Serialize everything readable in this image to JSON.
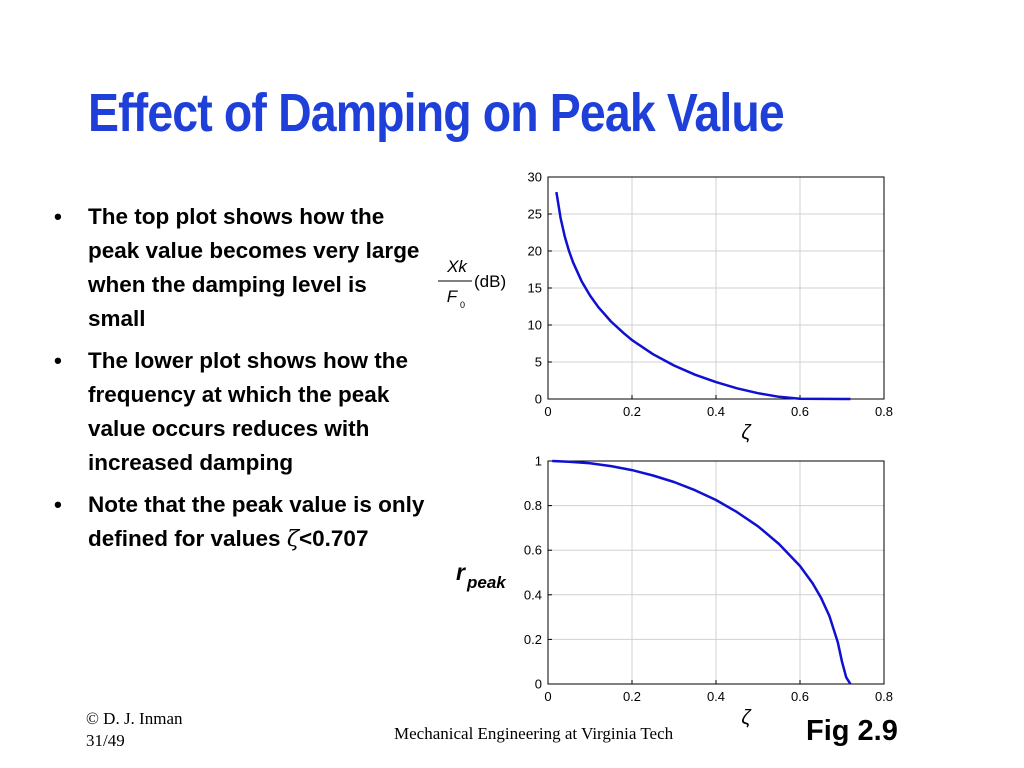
{
  "slide": {
    "title": "Effect of Damping on Peak Value",
    "bullets": [
      {
        "marker": "•",
        "text": "The top plot shows how the peak value becomes very large when the damping level is small"
      },
      {
        "marker": "•",
        "text": "The lower plot shows how the frequency at which the peak value occurs reduces with increased damping"
      },
      {
        "marker": "•",
        "text_before": "Note that the peak value is only defined for values ",
        "symbol": "ζ",
        "text_after": "<0.707"
      }
    ],
    "footer": {
      "copyright": "© D. J. Inman",
      "page": "31/49",
      "center": "Mechanical Engineering at Virginia Tech",
      "figure": "Fig 2.9"
    },
    "colors": {
      "title": "#1f3fd9",
      "curve": "#1010d0",
      "grid": "#d0d0d0"
    }
  },
  "chart_data": [
    {
      "type": "line",
      "xlabel": "ζ",
      "ylabel_numerator": "Xk",
      "ylabel_denominator": "F",
      "ylabel_subscript": "0",
      "ylabel_unit": "(dB)",
      "xlim": [
        0,
        0.8
      ],
      "ylim": [
        0,
        30
      ],
      "xticks": [
        0,
        0.2,
        0.4,
        0.6,
        0.8
      ],
      "xtick_labels": [
        "0",
        "0.2",
        "0.4",
        "0.6",
        "0.8"
      ],
      "yticks": [
        0,
        5,
        10,
        15,
        20,
        25,
        30
      ],
      "ytick_labels": [
        "0",
        "5",
        "10",
        "15",
        "20",
        "25",
        "30"
      ],
      "grid": true,
      "series": [
        {
          "x": [
            0.02,
            0.03,
            0.04,
            0.05,
            0.06,
            0.08,
            0.1,
            0.12,
            0.15,
            0.18,
            0.2,
            0.25,
            0.3,
            0.35,
            0.4,
            0.45,
            0.5,
            0.55,
            0.6,
            0.65,
            0.707,
            0.72
          ],
          "y": [
            27.96,
            24.44,
            21.94,
            20.0,
            18.42,
            15.92,
            13.98,
            12.4,
            10.47,
            8.9,
            7.96,
            6.06,
            4.53,
            3.29,
            2.28,
            1.45,
            0.78,
            0.3,
            0.04,
            0.02,
            0.0,
            0.0
          ]
        }
      ]
    },
    {
      "type": "line",
      "xlabel": "ζ",
      "ylabel_main": "r",
      "ylabel_subscript": "peak",
      "xlim": [
        0,
        0.8
      ],
      "ylim": [
        0,
        1
      ],
      "xticks": [
        0,
        0.2,
        0.4,
        0.6,
        0.8
      ],
      "xtick_labels": [
        "0",
        "0.2",
        "0.4",
        "0.6",
        "0.8"
      ],
      "yticks": [
        0,
        0.2,
        0.4,
        0.6,
        0.8,
        1
      ],
      "ytick_labels": [
        "0",
        "0.2",
        "0.4",
        "0.6",
        "0.8",
        "1"
      ],
      "grid": true,
      "series": [
        {
          "x": [
            0.01,
            0.05,
            0.1,
            0.15,
            0.2,
            0.25,
            0.3,
            0.35,
            0.4,
            0.45,
            0.5,
            0.55,
            0.6,
            0.63,
            0.65,
            0.67,
            0.69,
            0.7,
            0.71,
            0.72
          ],
          "y": [
            1.0,
            0.997,
            0.99,
            0.977,
            0.959,
            0.935,
            0.906,
            0.869,
            0.825,
            0.771,
            0.707,
            0.628,
            0.529,
            0.452,
            0.387,
            0.305,
            0.187,
            0.1,
            0.03,
            0.0
          ]
        }
      ]
    }
  ]
}
